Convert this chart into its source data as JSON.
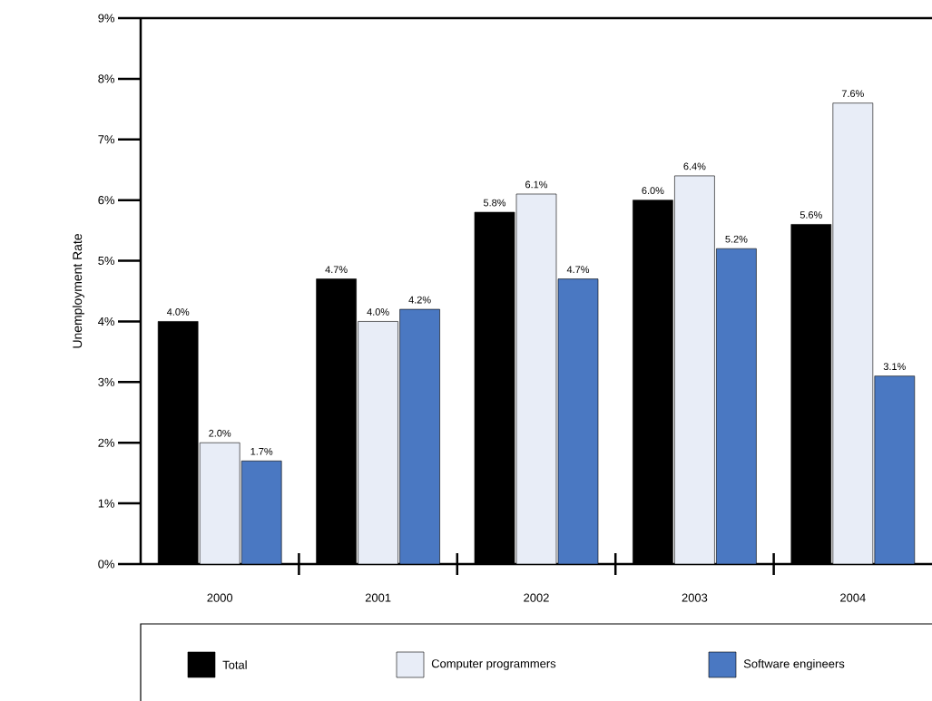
{
  "chart_data": {
    "type": "bar",
    "ylabel": "Unemployment Rate",
    "categories": [
      "2000",
      "2001",
      "2002",
      "2003",
      "2004"
    ],
    "series": [
      {
        "name": "Total",
        "color": "#000000",
        "values": [
          4.0,
          4.7,
          5.8,
          6.0,
          5.6
        ],
        "value_labels": [
          "4.0%",
          "4.7%",
          "5.8%",
          "6.0%",
          "5.6%"
        ]
      },
      {
        "name": "Computer programmers",
        "color": "#e8edf7",
        "values": [
          2.0,
          4.0,
          6.1,
          6.4,
          7.6
        ],
        "value_labels": [
          "2.0%",
          "4.0%",
          "6.1%",
          "6.4%",
          "7.6%"
        ]
      },
      {
        "name": "Software engineers",
        "color": "#4a78c2",
        "values": [
          1.7,
          4.2,
          4.7,
          5.2,
          3.1
        ],
        "value_labels": [
          "1.7%",
          "4.2%",
          "4.7%",
          "5.2%",
          "3.1%"
        ]
      }
    ],
    "ylim": [
      0,
      9
    ],
    "yticks": [
      {
        "value": 0,
        "label": "0%"
      },
      {
        "value": 1,
        "label": "1%"
      },
      {
        "value": 2,
        "label": "2%"
      },
      {
        "value": 3,
        "label": "3%"
      },
      {
        "value": 4,
        "label": "4%"
      },
      {
        "value": 5,
        "label": "5%"
      },
      {
        "value": 6,
        "label": "6%"
      },
      {
        "value": 7,
        "label": "7%"
      },
      {
        "value": 8,
        "label": "8%"
      },
      {
        "value": 9,
        "label": "9%"
      }
    ],
    "legend": "bottom"
  }
}
